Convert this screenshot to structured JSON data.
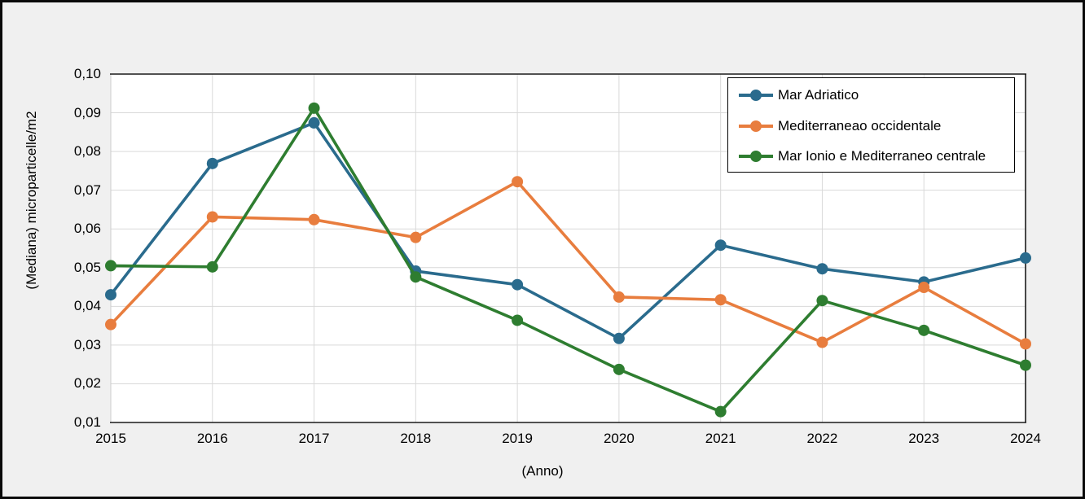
{
  "chart_data": {
    "type": "line",
    "title": "",
    "xlabel": "(Anno)",
    "ylabel": "(Mediana) microparticelle/m2",
    "x": [
      2015,
      2016,
      2017,
      2018,
      2019,
      2020,
      2021,
      2022,
      2023,
      2024
    ],
    "xtick_labels": [
      "2015",
      "2016",
      "2017",
      "2018",
      "2019",
      "2020",
      "2021",
      "2022",
      "2023",
      "2024"
    ],
    "ylim": [
      0.01,
      0.1
    ],
    "ytick_step": 0.01,
    "ytick_labels": [
      "0,01",
      "0,02",
      "0,03",
      "0,04",
      "0,05",
      "0,06",
      "0,07",
      "0,08",
      "0,09",
      "0,10"
    ],
    "grid": true,
    "legend_position": "top-right",
    "series": [
      {
        "name": "Mar Adriatico",
        "color": "#2a6b8d",
        "values": [
          0.043,
          0.0769,
          0.0874,
          0.0491,
          0.0456,
          0.0317,
          0.0558,
          0.0497,
          0.0463,
          0.0525
        ]
      },
      {
        "name": "Mediterraneao occidentale",
        "color": "#e87d3e",
        "values": [
          0.0353,
          0.0631,
          0.0624,
          0.0578,
          0.0722,
          0.0424,
          0.0417,
          0.0307,
          0.0449,
          0.0303
        ]
      },
      {
        "name": "Mar Ionio e Mediterraneo centrale",
        "color": "#2e7d30",
        "values": [
          0.0505,
          0.0502,
          0.0912,
          0.0476,
          0.0364,
          0.0237,
          0.0128,
          0.0415,
          0.0338,
          0.0248
        ]
      }
    ],
    "colors": {
      "plot_background": "#ffffff",
      "canvas_background": "#f0f0f0",
      "gridline": "#d9d9d9",
      "axis_frame": "#1a1a1a",
      "left_border": "#cccccc"
    }
  }
}
